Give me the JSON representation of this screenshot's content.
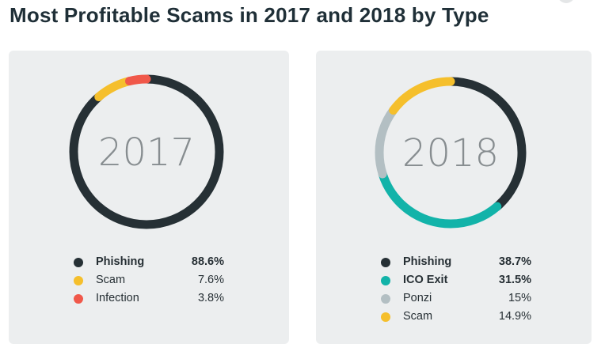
{
  "title": "Most Profitable Scams in 2017 and 2018 by Type",
  "chart_data": [
    {
      "type": "pie",
      "center_label": "2017",
      "series": [
        {
          "name": "Phishing",
          "value": 88.6,
          "display": "88.6%",
          "color": "#263035",
          "bold": true
        },
        {
          "name": "Scam",
          "value": 7.6,
          "display": "7.6%",
          "color": "#f5bf2c",
          "bold": false
        },
        {
          "name": "Infection",
          "value": 3.8,
          "display": "3.8%",
          "color": "#f0584a",
          "bold": false
        }
      ]
    },
    {
      "type": "pie",
      "center_label": "2018",
      "series": [
        {
          "name": "Phishing",
          "value": 38.7,
          "display": "38.7%",
          "color": "#263035",
          "bold": true
        },
        {
          "name": "ICO Exit",
          "value": 31.5,
          "display": "31.5%",
          "color": "#12b3a9",
          "bold": true
        },
        {
          "name": "Ponzi",
          "value": 15,
          "display": "15%",
          "color": "#b3bfc3",
          "bold": false
        },
        {
          "name": "Scam",
          "value": 14.9,
          "display": "14.9%",
          "color": "#f5bf2c",
          "bold": false
        }
      ]
    }
  ]
}
